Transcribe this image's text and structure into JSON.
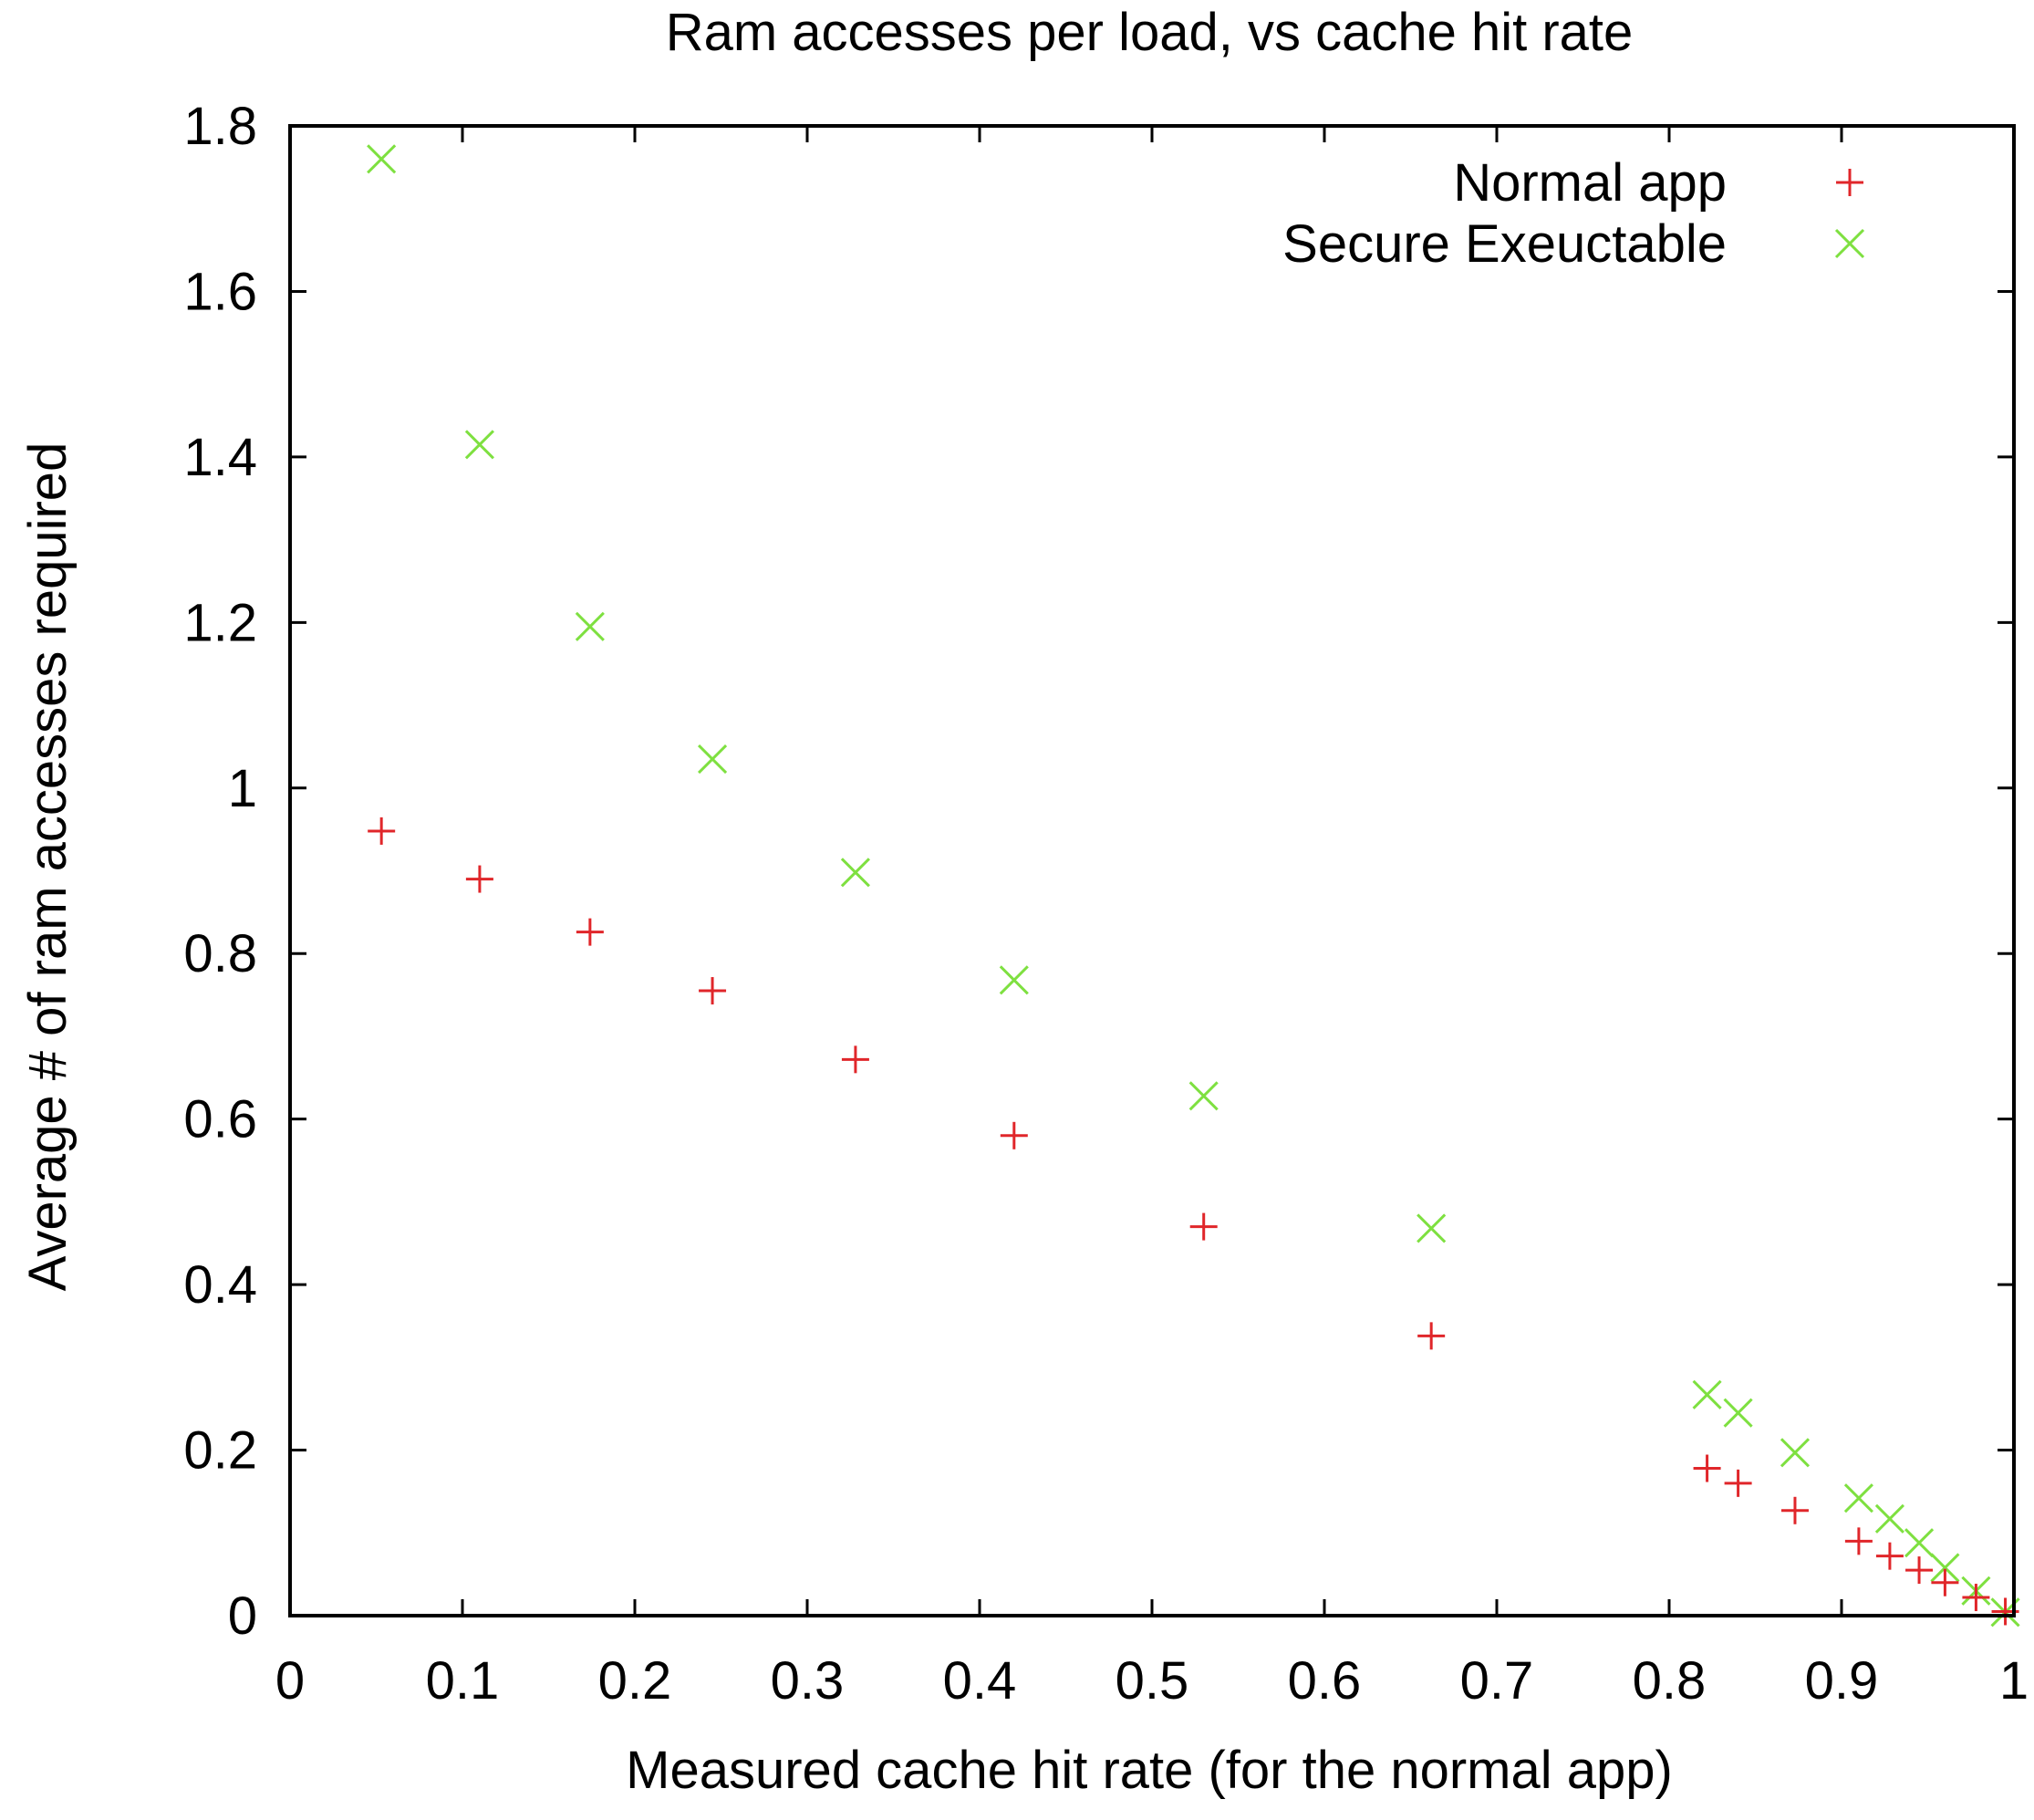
{
  "chart_data": {
    "type": "scatter",
    "title": "Ram accesses per load, vs cache hit rate",
    "xlabel": "Measured cache hit rate (for the normal app)",
    "ylabel": "Average # of ram accesses required",
    "xlim": [
      0,
      1
    ],
    "ylim": [
      0,
      1.8
    ],
    "xticks": [
      "0",
      "0.1",
      "0.2",
      "0.3",
      "0.4",
      "0.5",
      "0.6",
      "0.7",
      "0.8",
      "0.9",
      "1"
    ],
    "yticks": [
      "0",
      "0.2",
      "0.4",
      "0.6",
      "0.8",
      "1",
      "1.2",
      "1.4",
      "1.6",
      "1.8"
    ],
    "grid": false,
    "legend_position": "top-right",
    "series": [
      {
        "name": "Normal app",
        "marker": "plus",
        "color": "#e0262a",
        "x": [
          0.053,
          0.11,
          0.174,
          0.245,
          0.328,
          0.42,
          0.53,
          0.662,
          0.822,
          0.84,
          0.873,
          0.91,
          0.928,
          0.945,
          0.96,
          0.978,
          0.995
        ],
        "y": [
          0.948,
          0.89,
          0.826,
          0.755,
          0.672,
          0.58,
          0.47,
          0.338,
          0.178,
          0.16,
          0.127,
          0.09,
          0.072,
          0.055,
          0.04,
          0.022,
          0.005
        ]
      },
      {
        "name": "Secure Exeuctable",
        "marker": "cross",
        "color": "#7ee040",
        "x": [
          0.053,
          0.11,
          0.174,
          0.245,
          0.328,
          0.42,
          0.53,
          0.662,
          0.822,
          0.84,
          0.873,
          0.91,
          0.928,
          0.945,
          0.96,
          0.978,
          0.995
        ],
        "y": [
          1.76,
          1.415,
          1.195,
          1.035,
          0.898,
          0.768,
          0.628,
          0.468,
          0.267,
          0.245,
          0.197,
          0.142,
          0.117,
          0.088,
          0.058,
          0.03,
          0.004
        ]
      }
    ]
  }
}
